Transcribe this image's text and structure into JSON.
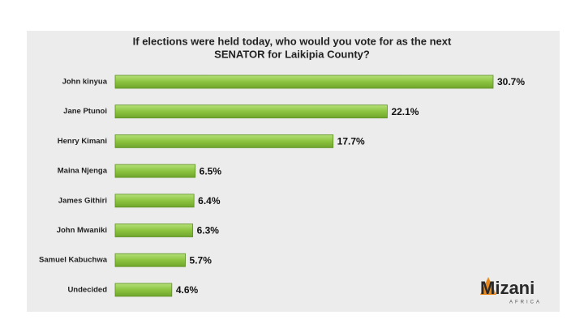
{
  "chart_data": {
    "type": "hbar",
    "title": [
      "If elections were held today, who would you vote for as the next",
      "SENATOR for Laikipia County?"
    ],
    "categories": [
      "John kinyua",
      "Jane Ptunoi",
      "Henry Kimani",
      "Maina Njenga",
      "James Githiri",
      "John Mwaniki",
      "Samuel Kabuchwa",
      "Undecided"
    ],
    "values": [
      30.7,
      22.1,
      17.7,
      6.5,
      6.4,
      6.3,
      5.7,
      4.6
    ],
    "value_labels": [
      "30.7%",
      "22.1%",
      "17.7%",
      "6.5%",
      "6.4%",
      "6.3%",
      "5.7%",
      "4.6%"
    ],
    "color": "#8cc43f"
  },
  "logo": {
    "name": "Mizani",
    "tagline": "AFRICA"
  }
}
